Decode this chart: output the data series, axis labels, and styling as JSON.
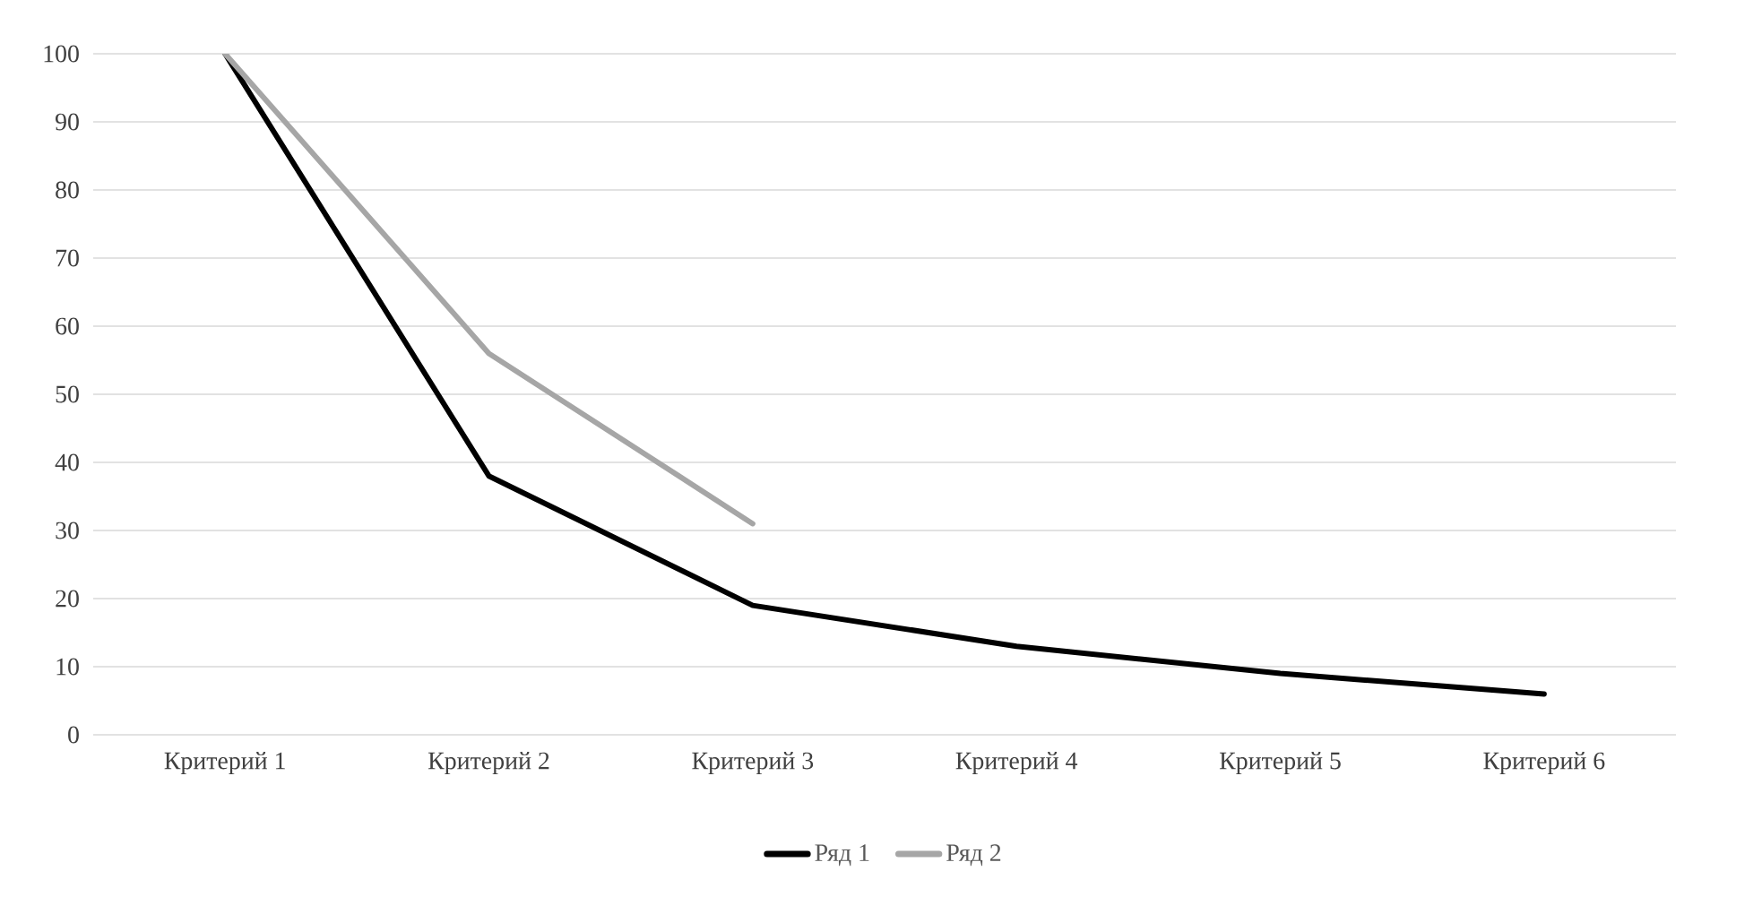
{
  "chart_data": {
    "type": "line",
    "categories": [
      "Критерий 1",
      "Критерий 2",
      "Критерий 3",
      "Критерий 4",
      "Критерий 5",
      "Критерий 6"
    ],
    "series": [
      {
        "name": "Ряд 1",
        "color": "#000000",
        "values": [
          100,
          38,
          19,
          13,
          9,
          6
        ]
      },
      {
        "name": "Ряд 2",
        "color": "#a6a6a6",
        "values": [
          100,
          56,
          31,
          null,
          null,
          null
        ]
      }
    ],
    "ylim": [
      0,
      100
    ],
    "yticks": [
      0,
      10,
      20,
      30,
      40,
      50,
      60,
      70,
      80,
      90,
      100
    ],
    "grid": "y",
    "legend": "bottom",
    "marker": "none",
    "line_style": "solid"
  }
}
